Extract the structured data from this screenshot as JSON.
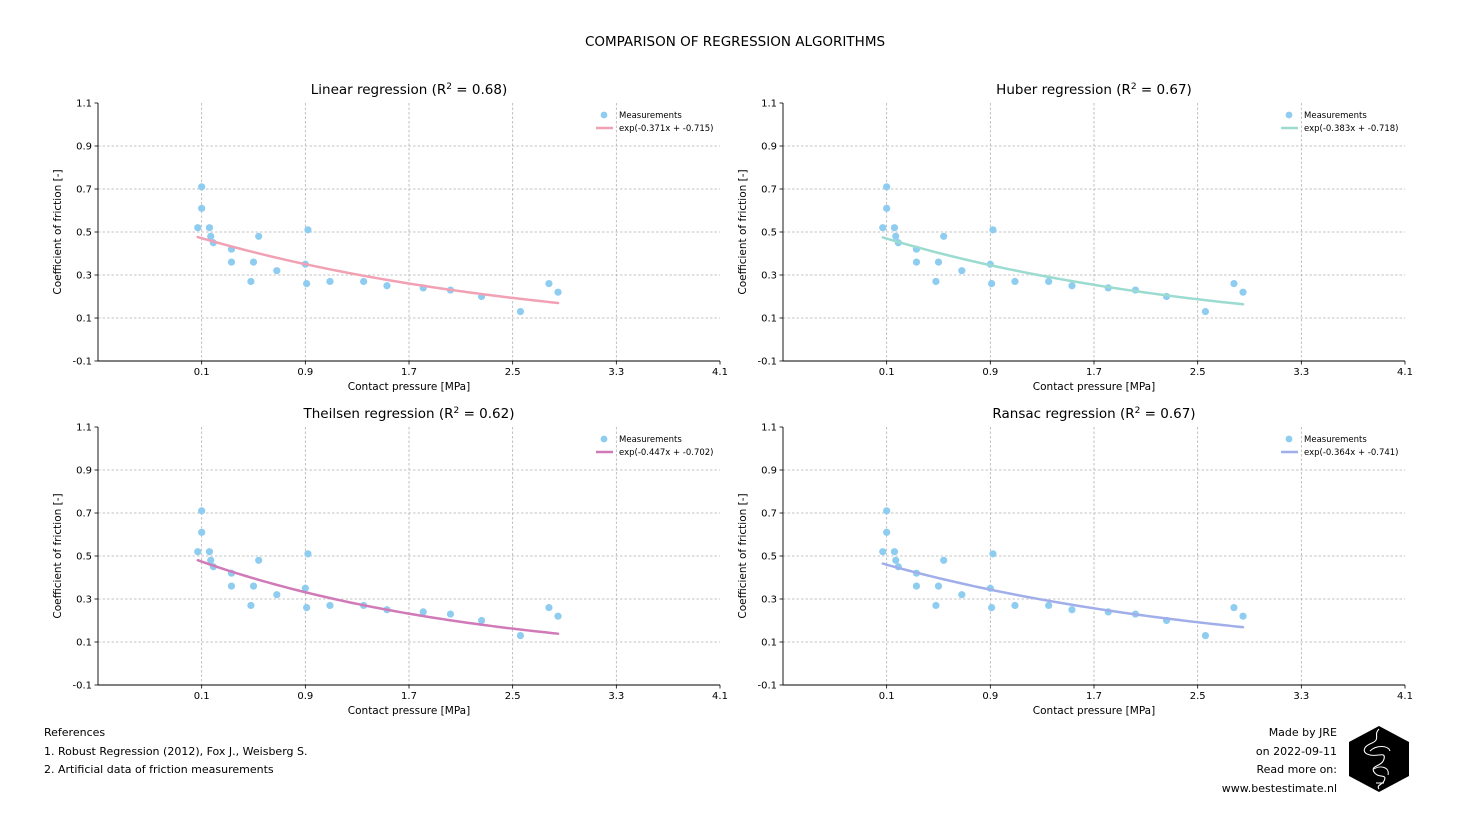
{
  "suptitle": "COMPARISON OF REGRESSION ALGORITHMS",
  "chart_data": [
    {
      "type": "scatter",
      "title": "Linear regression (R² = 0.68)",
      "xlabel": "Contact pressure [MPa]",
      "ylabel": "Coefficient of friction [-]",
      "xlim": [
        -0.7,
        4.1
      ],
      "ylim": [
        -0.1,
        1.1
      ],
      "xticks": [
        "0.1",
        "0.9",
        "1.7",
        "2.5",
        "3.3",
        "4.1"
      ],
      "yticks": [
        "-0.1",
        "0.1",
        "0.3",
        "0.5",
        "0.7",
        "0.9",
        "1.1"
      ],
      "grid": true,
      "legend_position": "top-right",
      "series": [
        {
          "name": "Measurements",
          "kind": "points",
          "color": "#8ecdf0",
          "x": [
            0.07,
            0.1,
            0.1,
            0.16,
            0.17,
            0.19,
            0.33,
            0.33,
            0.48,
            0.5,
            0.54,
            0.68,
            0.9,
            0.91,
            0.92,
            1.09,
            1.35,
            1.53,
            1.81,
            2.02,
            2.26,
            2.56,
            2.78,
            2.85
          ],
          "y": [
            0.52,
            0.71,
            0.61,
            0.52,
            0.48,
            0.45,
            0.42,
            0.36,
            0.27,
            0.36,
            0.48,
            0.32,
            0.35,
            0.26,
            0.51,
            0.27,
            0.27,
            0.25,
            0.24,
            0.23,
            0.2,
            0.13,
            0.26,
            0.22
          ]
        },
        {
          "name": "exp(-0.371x + -0.715)",
          "kind": "curve",
          "color": "#f2a0b4",
          "formula": {
            "a": -0.371,
            "b": -0.715
          },
          "x_range": [
            0.07,
            2.85
          ]
        }
      ]
    },
    {
      "type": "scatter",
      "title": "Huber regression (R² = 0.67)",
      "xlabel": "Contact pressure [MPa]",
      "ylabel": "Coefficient of friction [-]",
      "xlim": [
        -0.7,
        4.1
      ],
      "ylim": [
        -0.1,
        1.1
      ],
      "xticks": [
        "0.1",
        "0.9",
        "1.7",
        "2.5",
        "3.3",
        "4.1"
      ],
      "yticks": [
        "-0.1",
        "0.1",
        "0.3",
        "0.5",
        "0.7",
        "0.9",
        "1.1"
      ],
      "grid": true,
      "legend_position": "top-right",
      "series": [
        {
          "name": "Measurements",
          "kind": "points",
          "color": "#8ecdf0",
          "x": [
            0.07,
            0.1,
            0.1,
            0.16,
            0.17,
            0.19,
            0.33,
            0.33,
            0.48,
            0.5,
            0.54,
            0.68,
            0.9,
            0.91,
            0.92,
            1.09,
            1.35,
            1.53,
            1.81,
            2.02,
            2.26,
            2.56,
            2.78,
            2.85
          ],
          "y": [
            0.52,
            0.71,
            0.61,
            0.52,
            0.48,
            0.45,
            0.42,
            0.36,
            0.27,
            0.36,
            0.48,
            0.32,
            0.35,
            0.26,
            0.51,
            0.27,
            0.27,
            0.25,
            0.24,
            0.23,
            0.2,
            0.13,
            0.26,
            0.22
          ]
        },
        {
          "name": "exp(-0.383x + -0.718)",
          "kind": "curve",
          "color": "#9bdbd0",
          "formula": {
            "a": -0.383,
            "b": -0.718
          },
          "x_range": [
            0.07,
            2.85
          ]
        }
      ]
    },
    {
      "type": "scatter",
      "title": "Theilsen regression (R² = 0.62)",
      "xlabel": "Contact pressure [MPa]",
      "ylabel": "Coefficient of friction [-]",
      "xlim": [
        -0.7,
        4.1
      ],
      "ylim": [
        -0.1,
        1.1
      ],
      "xticks": [
        "0.1",
        "0.9",
        "1.7",
        "2.5",
        "3.3",
        "4.1"
      ],
      "yticks": [
        "-0.1",
        "0.1",
        "0.3",
        "0.5",
        "0.7",
        "0.9",
        "1.1"
      ],
      "grid": true,
      "legend_position": "top-right",
      "series": [
        {
          "name": "Measurements",
          "kind": "points",
          "color": "#8ecdf0",
          "x": [
            0.07,
            0.1,
            0.1,
            0.16,
            0.17,
            0.19,
            0.33,
            0.33,
            0.48,
            0.5,
            0.54,
            0.68,
            0.9,
            0.91,
            0.92,
            1.09,
            1.35,
            1.53,
            1.81,
            2.02,
            2.26,
            2.56,
            2.78,
            2.85
          ],
          "y": [
            0.52,
            0.71,
            0.61,
            0.52,
            0.48,
            0.45,
            0.42,
            0.36,
            0.27,
            0.36,
            0.48,
            0.32,
            0.35,
            0.26,
            0.51,
            0.27,
            0.27,
            0.25,
            0.24,
            0.23,
            0.2,
            0.13,
            0.26,
            0.22
          ]
        },
        {
          "name": "exp(-0.447x + -0.702)",
          "kind": "curve",
          "color": "#d17ab8",
          "formula": {
            "a": -0.447,
            "b": -0.702
          },
          "x_range": [
            0.07,
            2.85
          ]
        }
      ]
    },
    {
      "type": "scatter",
      "title": "Ransac regression (R² = 0.67)",
      "xlabel": "Contact pressure [MPa]",
      "ylabel": "Coefficient of friction [-]",
      "xlim": [
        -0.7,
        4.1
      ],
      "ylim": [
        -0.1,
        1.1
      ],
      "xticks": [
        "0.1",
        "0.9",
        "1.7",
        "2.5",
        "3.3",
        "4.1"
      ],
      "yticks": [
        "-0.1",
        "0.1",
        "0.3",
        "0.5",
        "0.7",
        "0.9",
        "1.1"
      ],
      "grid": true,
      "legend_position": "top-right",
      "series": [
        {
          "name": "Measurements",
          "kind": "points",
          "color": "#8ecdf0",
          "x": [
            0.07,
            0.1,
            0.1,
            0.16,
            0.17,
            0.19,
            0.33,
            0.33,
            0.48,
            0.5,
            0.54,
            0.68,
            0.9,
            0.91,
            0.92,
            1.09,
            1.35,
            1.53,
            1.81,
            2.02,
            2.26,
            2.56,
            2.78,
            2.85
          ],
          "y": [
            0.52,
            0.71,
            0.61,
            0.52,
            0.48,
            0.45,
            0.42,
            0.36,
            0.27,
            0.36,
            0.48,
            0.32,
            0.35,
            0.26,
            0.51,
            0.27,
            0.27,
            0.25,
            0.24,
            0.23,
            0.2,
            0.13,
            0.26,
            0.22
          ]
        },
        {
          "name": "exp(-0.364x + -0.741)",
          "kind": "curve",
          "color": "#a0aeea",
          "formula": {
            "a": -0.364,
            "b": -0.741
          },
          "x_range": [
            0.07,
            2.85
          ]
        }
      ]
    }
  ],
  "references": {
    "heading": "References",
    "items": [
      "1. Robust Regression (2012), Fox J., Weisberg S.",
      "2. Artificial data of friction measurements"
    ]
  },
  "credits": {
    "made_by": "Made by JRE",
    "date": "on 2022-09-11",
    "read_more": "Read more on:",
    "url": "www.bestestimate.nl"
  },
  "logo_icon": "hexagon-logo-icon"
}
